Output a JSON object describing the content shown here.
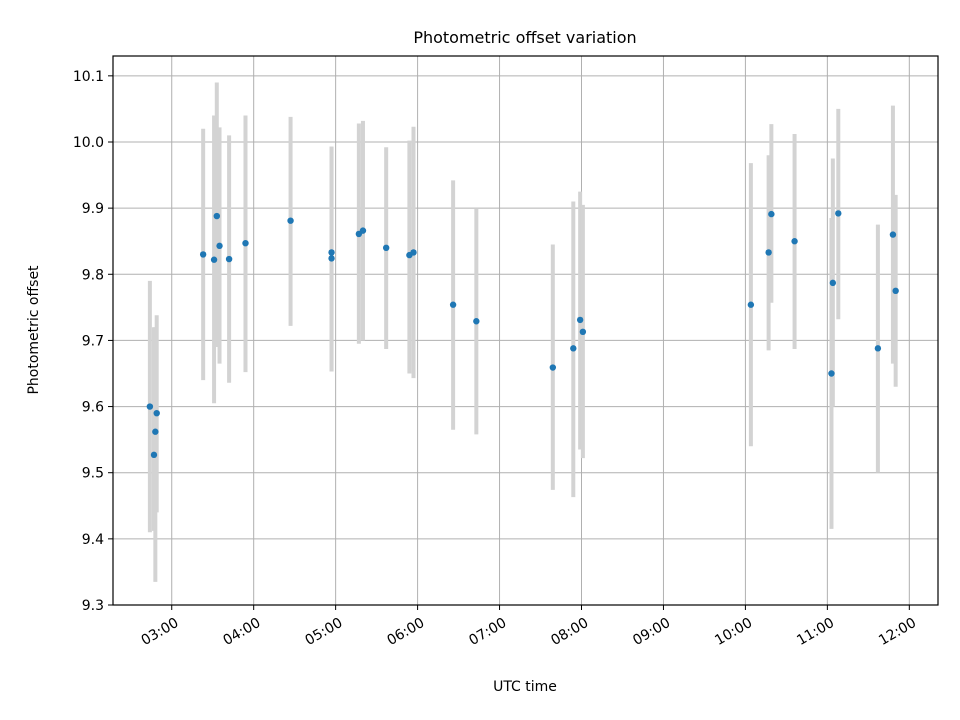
{
  "chart_data": {
    "type": "scatter",
    "title": "Photometric offset variation",
    "xlabel": "UTC time",
    "ylabel": "Photometric offset",
    "x_ticks": [
      "03:00",
      "04:00",
      "05:00",
      "06:00",
      "07:00",
      "08:00",
      "09:00",
      "10:00",
      "11:00",
      "12:00"
    ],
    "y_ticks": [
      "9.3",
      "9.4",
      "9.5",
      "9.6",
      "9.7",
      "9.8",
      "9.9",
      "10.0",
      "10.1"
    ],
    "xlim": [
      "02:17",
      "12:21"
    ],
    "ylim": [
      9.3,
      10.13
    ],
    "grid": true,
    "point_color": "#1f77b4",
    "errorbar_color": "#d3d3d3",
    "points": [
      {
        "x": "02:44",
        "y": 9.6,
        "err_low": 9.41,
        "err_high": 9.79
      },
      {
        "x": "02:47",
        "y": 9.527,
        "err_low": 9.412,
        "err_high": 9.72
      },
      {
        "x": "02:48",
        "y": 9.562,
        "err_low": 9.335,
        "err_high": 9.72
      },
      {
        "x": "02:49",
        "y": 9.59,
        "err_low": 9.44,
        "err_high": 9.738
      },
      {
        "x": "03:23",
        "y": 9.83,
        "err_low": 9.64,
        "err_high": 10.02
      },
      {
        "x": "03:31",
        "y": 9.822,
        "err_low": 9.605,
        "err_high": 10.04
      },
      {
        "x": "03:33",
        "y": 9.888,
        "err_low": 9.69,
        "err_high": 10.09
      },
      {
        "x": "03:35",
        "y": 9.843,
        "err_low": 9.665,
        "err_high": 10.022
      },
      {
        "x": "03:42",
        "y": 9.823,
        "err_low": 9.636,
        "err_high": 10.01
      },
      {
        "x": "03:54",
        "y": 9.847,
        "err_low": 9.652,
        "err_high": 10.04
      },
      {
        "x": "04:27",
        "y": 9.881,
        "err_low": 9.722,
        "err_high": 10.038
      },
      {
        "x": "04:57",
        "y": 9.833,
        "err_low": 9.653,
        "err_high": 9.993
      },
      {
        "x": "04:57",
        "y": 9.824,
        "err_low": 9.653,
        "err_high": 9.993
      },
      {
        "x": "05:17",
        "y": 9.861,
        "err_low": 9.695,
        "err_high": 10.028
      },
      {
        "x": "05:20",
        "y": 9.866,
        "err_low": 9.7,
        "err_high": 10.032
      },
      {
        "x": "05:37",
        "y": 9.84,
        "err_low": 9.687,
        "err_high": 9.992
      },
      {
        "x": "05:54",
        "y": 9.829,
        "err_low": 9.65,
        "err_high": 10.002
      },
      {
        "x": "05:57",
        "y": 9.833,
        "err_low": 9.643,
        "err_high": 10.023
      },
      {
        "x": "06:26",
        "y": 9.754,
        "err_low": 9.565,
        "err_high": 9.942
      },
      {
        "x": "06:43",
        "y": 9.729,
        "err_low": 9.558,
        "err_high": 9.9
      },
      {
        "x": "07:39",
        "y": 9.659,
        "err_low": 9.474,
        "err_high": 9.845
      },
      {
        "x": "07:54",
        "y": 9.688,
        "err_low": 9.463,
        "err_high": 9.91
      },
      {
        "x": "07:59",
        "y": 9.731,
        "err_low": 9.535,
        "err_high": 9.925
      },
      {
        "x": "08:01",
        "y": 9.713,
        "err_low": 9.522,
        "err_high": 9.905
      },
      {
        "x": "10:04",
        "y": 9.754,
        "err_low": 9.54,
        "err_high": 9.968
      },
      {
        "x": "10:17",
        "y": 9.833,
        "err_low": 9.685,
        "err_high": 9.98
      },
      {
        "x": "10:19",
        "y": 9.891,
        "err_low": 9.757,
        "err_high": 10.027
      },
      {
        "x": "10:36",
        "y": 9.85,
        "err_low": 9.687,
        "err_high": 10.012
      },
      {
        "x": "11:04",
        "y": 9.787,
        "err_low": 9.6,
        "err_high": 9.975
      },
      {
        "x": "11:03",
        "y": 9.65,
        "err_low": 9.415,
        "err_high": 9.885
      },
      {
        "x": "11:08",
        "y": 9.892,
        "err_low": 9.732,
        "err_high": 10.05
      },
      {
        "x": "11:37",
        "y": 9.688,
        "err_low": 9.5,
        "err_high": 9.875
      },
      {
        "x": "11:48",
        "y": 9.86,
        "err_low": 9.665,
        "err_high": 10.055
      },
      {
        "x": "11:50",
        "y": 9.775,
        "err_low": 9.63,
        "err_high": 9.92
      }
    ]
  }
}
